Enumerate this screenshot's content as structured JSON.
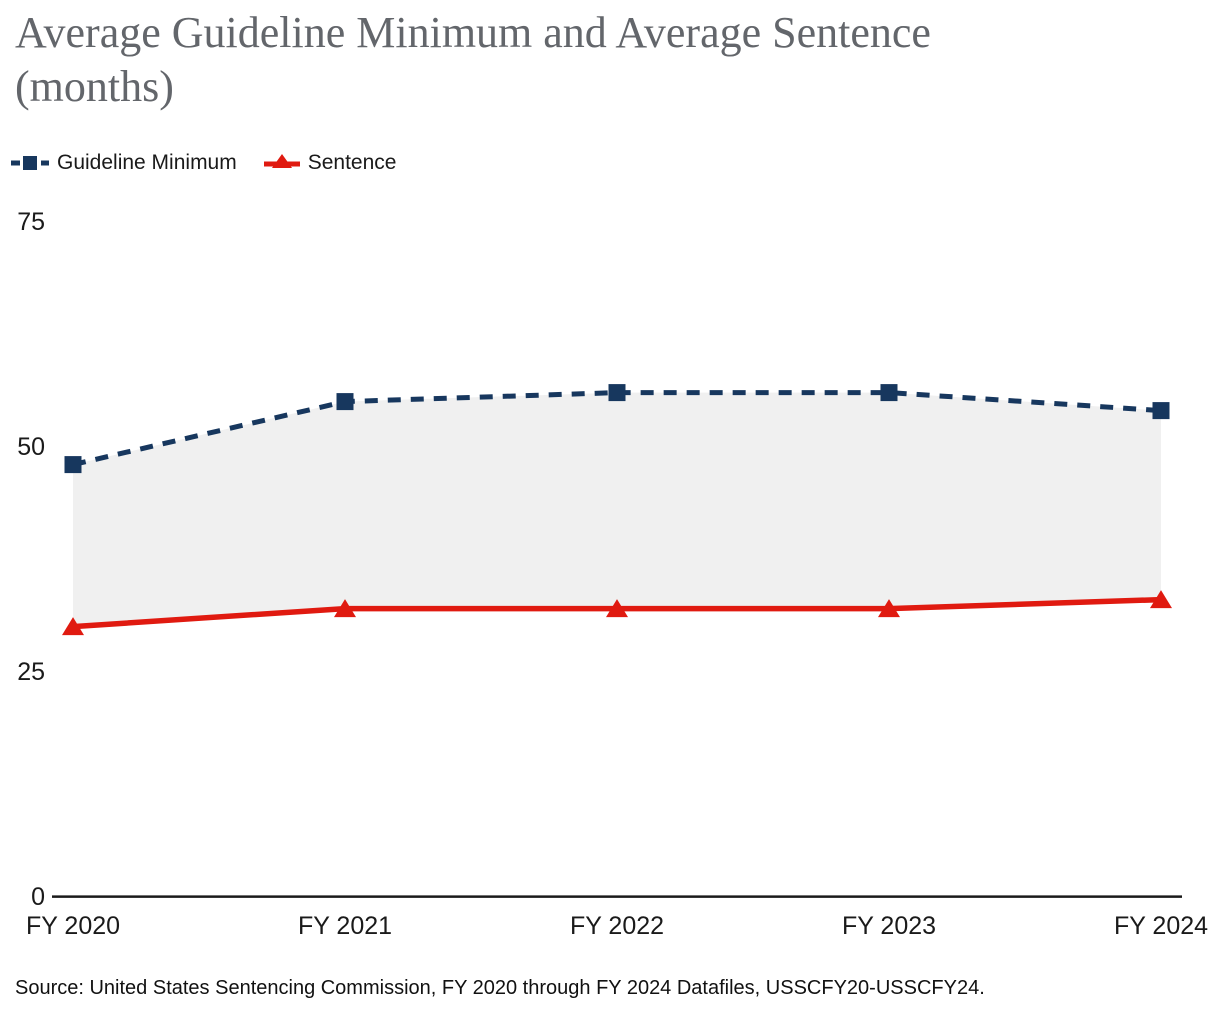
{
  "page": {
    "title_line1": "Average Guideline Minimum and Average Sentence",
    "title_line2": "(months)",
    "source": "Source: United States Sentencing Commission, FY 2020 through FY 2024 Datafiles, USSCFY20-USSCFY24."
  },
  "legend": {
    "items": [
      {
        "label": "Guideline Minimum",
        "color": "#17375e",
        "marker": "square-on-dashed-line"
      },
      {
        "label": "Sentence",
        "color": "#e01a10",
        "marker": "triangle-on-solid-line"
      }
    ]
  },
  "chart_data": {
    "type": "line",
    "title": "Average Guideline Minimum and Average Sentence (months)",
    "categories": [
      "FY 2020",
      "FY 2021",
      "FY 2022",
      "FY 2023",
      "FY 2024"
    ],
    "series": [
      {
        "name": "Guideline Minimum",
        "values": [
          48,
          55,
          56,
          56,
          54
        ],
        "color": "#17375e",
        "line_style": "dashed",
        "marker": "square"
      },
      {
        "name": "Sentence",
        "values": [
          30,
          32,
          32,
          32,
          33
        ],
        "color": "#e01a10",
        "line_style": "solid",
        "marker": "triangle"
      }
    ],
    "yticks": [
      0,
      25,
      50,
      75
    ],
    "ylim": [
      0,
      75
    ],
    "xlabel": "",
    "ylabel": "",
    "grid": false,
    "fill_between_series": true,
    "fill_color": "#f0f0f0",
    "axis_color": "#1a1a1a",
    "tick_color": "#1a1a1a",
    "legend_position": "top-left"
  }
}
